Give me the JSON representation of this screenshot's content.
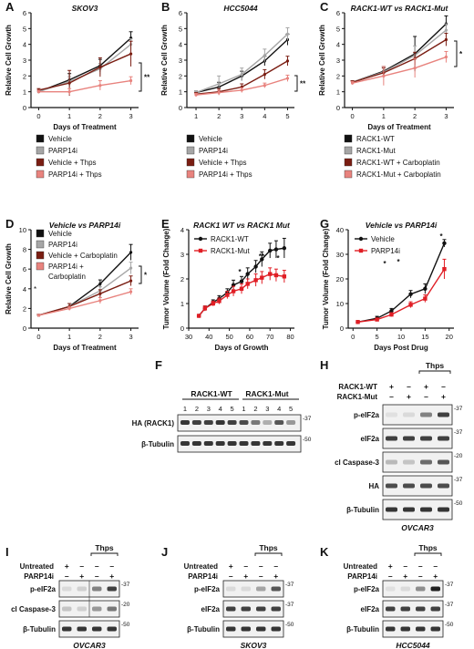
{
  "colors": {
    "black": "#111111",
    "gray": "#a6a6a6",
    "darkred": "#7a1d12",
    "pink": "#e8837e",
    "red": "#e01e25"
  },
  "panels": {
    "A": {
      "letter": "A",
      "title": "SKOV3",
      "star": "**"
    },
    "B": {
      "letter": "B",
      "title": "HCC5044",
      "star": "**"
    },
    "C": {
      "letter": "C",
      "title": "RACK1-WT vs RACK1-Mut",
      "star": "*"
    },
    "D": {
      "letter": "D",
      "title": "Vehicle vs PARP14i",
      "star": "*"
    },
    "E": {
      "letter": "E",
      "title": "RACK1 WT vs RACK1 Mut"
    },
    "G": {
      "letter": "G",
      "title": "Vehicle vs PARP14i"
    }
  },
  "legend_vp": [
    "Vehicle",
    "PARP14i",
    "Vehicle + Thps",
    "PARP14i + Thps"
  ],
  "legend_rack": [
    "RACK1-WT",
    "RACK1-Mut",
    "RACK1-WT + Carboplatin",
    "RACK1-Mut + Carboplatin"
  ],
  "legend_d": [
    "Vehicle",
    "PARP14i",
    "Vehicle + Carboplatin",
    "PARP14i +",
    "Carboplatin"
  ],
  "legend_e": [
    "RACK1-WT",
    "RACK1-Mut"
  ],
  "legend_g": [
    "Vehicle",
    "PARP14i"
  ],
  "blots": {
    "F": {
      "letter": "F",
      "group1": "RACK1-WT",
      "group2": "RACK1-Mut",
      "lanes": [
        "1",
        "2",
        "3",
        "4",
        "5",
        "1",
        "2",
        "3",
        "4",
        "5"
      ],
      "rows": [
        "HA (RACK1)",
        "β-Tubulin"
      ],
      "markers": [
        "-37",
        "-50"
      ]
    },
    "H": {
      "letter": "H",
      "thps": "Thps",
      "rowlabels": [
        "RACK1-WT",
        "RACK1-Mut"
      ],
      "signs": [
        [
          "+",
          "–",
          "+",
          "–"
        ],
        [
          "–",
          "+",
          "–",
          "+"
        ]
      ],
      "rows": [
        "p-eIF2a",
        "eIF2a",
        "cl Caspase-3",
        "HA",
        "β-Tubulin"
      ],
      "markers": [
        "-37",
        "-37",
        "-20",
        "-37",
        "-50"
      ],
      "cell": "OVCAR3"
    },
    "I": {
      "letter": "I",
      "thps": "Thps",
      "rowlabels": [
        "Untreated",
        "PARP14i"
      ],
      "signs": [
        [
          "+",
          "–",
          "–",
          "–"
        ],
        [
          "–",
          "+",
          "–",
          "+"
        ]
      ],
      "rows": [
        "p-eIF2a",
        "cl Caspase-3",
        "β-Tubulin"
      ],
      "markers": [
        "-37",
        "-20",
        "-50"
      ],
      "cell": "OVCAR3"
    },
    "J": {
      "letter": "J",
      "thps": "Thps",
      "rowlabels": [
        "Untreated",
        "PARP14i"
      ],
      "signs": [
        [
          "+",
          "–",
          "–",
          "–"
        ],
        [
          "–",
          "+",
          "–",
          "+"
        ]
      ],
      "rows": [
        "p-eIF2a",
        "eIF2a",
        "β-Tubulin"
      ],
      "markers": [
        "-37",
        "-37",
        "-50"
      ],
      "cell": "SKOV3"
    },
    "K": {
      "letter": "K",
      "thps": "Thps",
      "rowlabels": [
        "Untreated",
        "PARP14i"
      ],
      "signs": [
        [
          "+",
          "–",
          "–",
          "–"
        ],
        [
          "–",
          "+",
          "–",
          "+"
        ]
      ],
      "rows": [
        "p-eIF2a",
        "eIF2a",
        "β-Tubulin"
      ],
      "markers": [
        "-37",
        "-37",
        "-50"
      ],
      "cell": "HCC5044"
    }
  },
  "chart_data": [
    {
      "id": "A",
      "type": "line",
      "title": "SKOV3",
      "xlabel": "Days of Treatment",
      "ylabel": "Relative Cell Growth",
      "xlim": [
        -0.25,
        3.25
      ],
      "ylim": [
        0,
        6
      ],
      "xticks": [
        0,
        1,
        2,
        3
      ],
      "yticks": [
        0,
        1,
        2,
        3,
        4,
        5,
        6
      ],
      "x": [
        0,
        1,
        2,
        3
      ],
      "series": [
        {
          "name": "Vehicle",
          "color": "#111111",
          "values": [
            1,
            1.75,
            2.65,
            4.4
          ],
          "err": [
            0.1,
            0.4,
            0.4,
            0.4
          ]
        },
        {
          "name": "PARP14i",
          "color": "#a6a6a6",
          "values": [
            1,
            1.65,
            2.45,
            4.0
          ],
          "err": [
            0.1,
            0.3,
            0.35,
            0.35
          ]
        },
        {
          "name": "Vehicle + Thps",
          "color": "#7a1d12",
          "values": [
            1.1,
            1.55,
            2.55,
            3.4
          ],
          "err": [
            0.1,
            0.8,
            0.6,
            0.8
          ]
        },
        {
          "name": "PARP14i + Thps",
          "color": "#e8837e",
          "values": [
            1,
            1.0,
            1.4,
            1.7
          ],
          "err": [
            0.1,
            0.2,
            0.3,
            0.25
          ]
        }
      ]
    },
    {
      "id": "B",
      "type": "line",
      "title": "HCC5044",
      "xlabel": "",
      "ylabel": "Relative Cell Growth",
      "xlim": [
        0.6,
        5.3
      ],
      "ylim": [
        0,
        6
      ],
      "xticks": [
        1,
        2,
        3,
        4,
        5
      ],
      "yticks": [
        0,
        1,
        2,
        3,
        4,
        5,
        6
      ],
      "x": [
        1,
        2,
        3,
        4,
        5
      ],
      "series": [
        {
          "name": "Vehicle",
          "color": "#111111",
          "values": [
            0.95,
            1.3,
            2.0,
            2.95,
            4.3
          ],
          "err": [
            0.1,
            0.3,
            0.3,
            0.3,
            0.35
          ]
        },
        {
          "name": "PARP14i",
          "color": "#a6a6a6",
          "values": [
            0.95,
            1.5,
            2.1,
            3.3,
            4.65
          ],
          "err": [
            0.1,
            0.5,
            0.4,
            0.4,
            0.4
          ]
        },
        {
          "name": "Vehicle + Thps",
          "color": "#7a1d12",
          "values": [
            0.85,
            1.0,
            1.3,
            2.1,
            2.95
          ],
          "err": [
            0.1,
            0.2,
            0.2,
            0.3,
            0.3
          ]
        },
        {
          "name": "PARP14i + Thps",
          "color": "#e8837e",
          "values": [
            0.8,
            0.95,
            1.1,
            1.4,
            1.85
          ],
          "err": [
            0.1,
            0.15,
            0.15,
            0.15,
            0.2
          ]
        }
      ]
    },
    {
      "id": "C",
      "type": "line",
      "title": "RACK1-WT vs RACK1-Mut",
      "xlabel": "Days of Treatment",
      "ylabel": "Relative Cell Growth",
      "xlim": [
        -0.25,
        3.25
      ],
      "ylim": [
        0,
        6
      ],
      "xticks": [
        0,
        1,
        2,
        3
      ],
      "yticks": [
        0,
        1,
        2,
        3,
        4,
        5,
        6
      ],
      "x": [
        0,
        1,
        2,
        3
      ],
      "series": [
        {
          "name": "RACK1-WT",
          "color": "#111111",
          "values": [
            1.6,
            2.3,
            3.4,
            5.3
          ],
          "err": [
            0.1,
            0.3,
            1.1,
            0.5
          ]
        },
        {
          "name": "RACK1-Mut",
          "color": "#a6a6a6",
          "values": [
            1.6,
            2.25,
            3.3,
            4.9
          ],
          "err": [
            0.1,
            0.3,
            0.6,
            0.4
          ]
        },
        {
          "name": "RACK1-WT + Carboplatin",
          "color": "#7a1d12",
          "values": [
            1.6,
            2.2,
            3.1,
            4.3
          ],
          "err": [
            0.1,
            0.3,
            0.4,
            0.4
          ]
        },
        {
          "name": "RACK1-Mut + Carboplatin",
          "color": "#e8837e",
          "values": [
            1.55,
            2.0,
            2.5,
            3.2
          ],
          "err": [
            0.1,
            0.6,
            0.6,
            0.35
          ]
        }
      ]
    },
    {
      "id": "D",
      "type": "line",
      "title": "Vehicle vs PARP14i",
      "xlabel": "Days of Treatment",
      "ylabel": "Relative Cell Growth",
      "xlim": [
        -0.25,
        3.25
      ],
      "ylim": [
        0,
        10
      ],
      "xticks": [
        0,
        1,
        2,
        3
      ],
      "yticks": [
        0,
        2,
        4,
        6,
        8,
        10
      ],
      "x": [
        0,
        1,
        2,
        3
      ],
      "series": [
        {
          "name": "Vehicle",
          "color": "#111111",
          "values": [
            1.3,
            2.2,
            4.5,
            7.7
          ],
          "err": [
            0.1,
            0.3,
            0.4,
            0.8
          ]
        },
        {
          "name": "PARP14i",
          "color": "#a6a6a6",
          "values": [
            1.3,
            2.2,
            3.8,
            6.1
          ],
          "err": [
            0.1,
            0.3,
            0.4,
            0.6
          ]
        },
        {
          "name": "Vehicle + Carboplatin",
          "color": "#7a1d12",
          "values": [
            1.3,
            2.2,
            3.5,
            4.8
          ],
          "err": [
            0.1,
            0.3,
            0.4,
            0.5
          ]
        },
        {
          "name": "PARP14i + Carboplatin",
          "color": "#e8837e",
          "values": [
            1.3,
            2.0,
            2.8,
            3.7
          ],
          "err": [
            0.1,
            0.2,
            0.3,
            0.3
          ]
        }
      ]
    },
    {
      "id": "E",
      "type": "line",
      "title": "RACK1 WT vs RACK1 Mut",
      "xlabel": "Days of Growth",
      "ylabel": "Tumor Volume (Fold Change)",
      "xlim": [
        30,
        82
      ],
      "ylim": [
        0,
        4
      ],
      "xticks": [
        30,
        40,
        50,
        60,
        70,
        80
      ],
      "yticks": [
        0,
        1,
        2,
        3,
        4
      ],
      "x": [
        35,
        38,
        42,
        45,
        49,
        52,
        56,
        59,
        63,
        66,
        70,
        73,
        77
      ],
      "series": [
        {
          "name": "RACK1-WT",
          "color": "#111111",
          "values": [
            0.5,
            0.8,
            1.05,
            1.2,
            1.45,
            1.75,
            1.9,
            2.2,
            2.5,
            2.8,
            3.15,
            3.2,
            3.25
          ],
          "err": [
            0.05,
            0.1,
            0.1,
            0.12,
            0.15,
            0.2,
            0.2,
            0.25,
            0.25,
            0.3,
            0.3,
            0.35,
            0.4
          ]
        },
        {
          "name": "RACK1-Mut",
          "color": "#e01e25",
          "values": [
            0.5,
            0.8,
            1.0,
            1.1,
            1.35,
            1.5,
            1.6,
            1.8,
            1.95,
            2.05,
            2.2,
            2.15,
            2.1
          ],
          "err": [
            0.05,
            0.1,
            0.1,
            0.12,
            0.15,
            0.2,
            0.2,
            0.2,
            0.25,
            0.25,
            0.25,
            0.25,
            0.25
          ]
        }
      ]
    },
    {
      "id": "G",
      "type": "line",
      "title": "Vehicle vs PARP14i",
      "xlabel": "Days Post Drug",
      "ylabel": "Tumor Volume (Fold Change)",
      "xlim": [
        -1,
        21
      ],
      "ylim": [
        0,
        40
      ],
      "xticks": [
        0,
        5,
        10,
        15,
        20
      ],
      "yticks": [
        0,
        10,
        20,
        30,
        40
      ],
      "x": [
        1,
        5,
        8,
        12,
        15,
        19
      ],
      "series": [
        {
          "name": "Vehicle",
          "color": "#111111",
          "values": [
            2.5,
            4.0,
            7.0,
            13.8,
            16.0,
            34.5
          ],
          "err": [
            0.5,
            0.8,
            1,
            1.5,
            2,
            1.5
          ]
        },
        {
          "name": "PARP14i",
          "color": "#e01e25",
          "values": [
            2.5,
            3.5,
            5.5,
            9.5,
            12.0,
            24.0
          ],
          "err": [
            0.5,
            0.6,
            0.8,
            1.2,
            1.5,
            4
          ]
        }
      ]
    }
  ]
}
